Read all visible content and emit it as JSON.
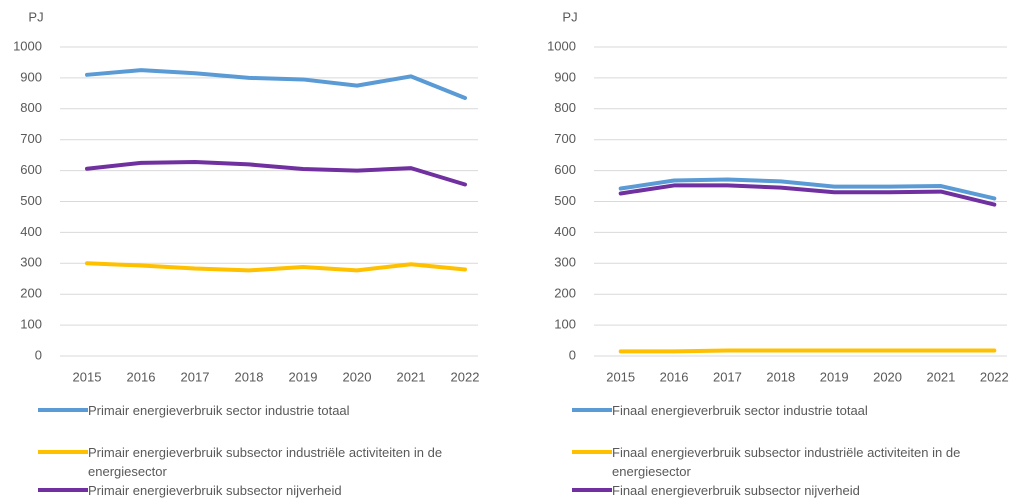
{
  "chart_data": [
    {
      "type": "line",
      "y_label": "PJ",
      "categories": [
        "2015",
        "2016",
        "2017",
        "2018",
        "2019",
        "2020",
        "2021",
        "2022"
      ],
      "ylim": [
        0,
        1000
      ],
      "yticks": [
        0,
        100,
        200,
        300,
        400,
        500,
        600,
        700,
        800,
        900,
        1000
      ],
      "grid": true,
      "series": [
        {
          "name": "Primair energieverbruik sector industrie totaal",
          "color": "#5b9bd5",
          "values": [
            910,
            925,
            915,
            900,
            895,
            875,
            905,
            835
          ]
        },
        {
          "name": "Primair energieverbruik subsector industriële activiteiten in de energiesector",
          "color": "#ffc000",
          "values": [
            300,
            293,
            283,
            277,
            288,
            277,
            297,
            280
          ]
        },
        {
          "name": "Primair energieverbruik subsector nijverheid",
          "color": "#7030a0",
          "values": [
            606,
            625,
            628,
            620,
            605,
            600,
            608,
            555
          ]
        }
      ]
    },
    {
      "type": "line",
      "y_label": "PJ",
      "categories": [
        "2015",
        "2016",
        "2017",
        "2018",
        "2019",
        "2020",
        "2021",
        "2022"
      ],
      "ylim": [
        0,
        1000
      ],
      "yticks": [
        0,
        100,
        200,
        300,
        400,
        500,
        600,
        700,
        800,
        900,
        1000
      ],
      "grid": true,
      "series": [
        {
          "name": "Finaal energieverbruik sector industrie totaal",
          "color": "#5b9bd5",
          "values": [
            542,
            568,
            571,
            565,
            548,
            548,
            550,
            510
          ]
        },
        {
          "name": "Finaal energieverbruik subsector industriële activiteiten in de energiesector",
          "color": "#ffc000",
          "values": [
            15,
            15,
            18,
            18,
            18,
            18,
            18,
            18
          ]
        },
        {
          "name": "Finaal energieverbruik subsector nijverheid",
          "color": "#7030a0",
          "values": [
            526,
            552,
            552,
            545,
            530,
            530,
            532,
            490
          ]
        }
      ]
    }
  ]
}
